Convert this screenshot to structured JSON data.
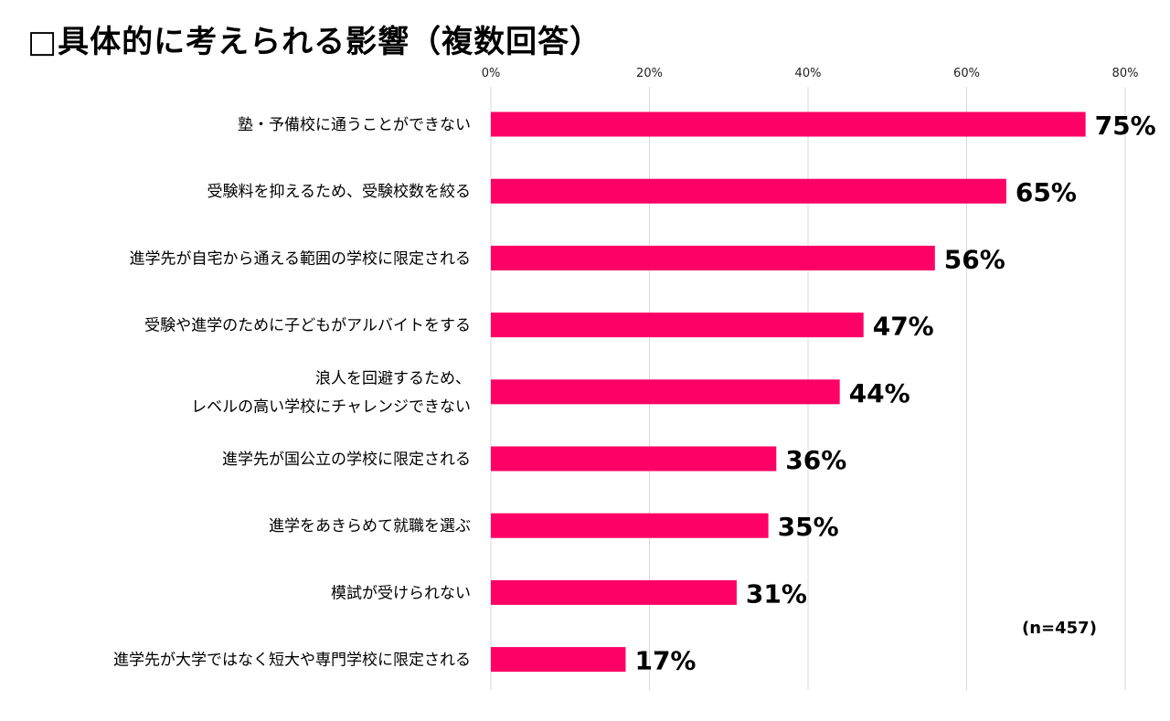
{
  "title": "□具体的に考えられる影響（複数回答）",
  "note": "(n=457)",
  "chart_data": {
    "type": "bar",
    "orientation": "horizontal",
    "bar_color": "#FF0066",
    "grid": true,
    "xlim": [
      0,
      80
    ],
    "ticks": [
      0,
      20,
      40,
      60,
      80
    ],
    "tick_labels": [
      "0%",
      "20%",
      "40%",
      "60%",
      "80%"
    ],
    "categories": [
      [
        "塾・予備校に通うことができない"
      ],
      [
        "受験料を抑えるため、受験校数を絞る"
      ],
      [
        "進学先が自宅から通える範囲の学校に限定される"
      ],
      [
        "受験や進学のために子どもがアルバイトをする"
      ],
      [
        "浪人を回避するため、",
        "レベルの高い学校にチャレンジできない"
      ],
      [
        "進学先が国公立の学校に限定される"
      ],
      [
        "進学をあきらめて就職を選ぶ"
      ],
      [
        "模試が受けられない"
      ],
      [
        "進学先が大学ではなく短大や専門学校に限定される"
      ]
    ],
    "values": [
      75,
      65,
      56,
      47,
      44,
      36,
      35,
      31,
      17
    ],
    "value_labels": [
      "75%",
      "65%",
      "56%",
      "47%",
      "44%",
      "36%",
      "35%",
      "31%",
      "17%"
    ]
  }
}
